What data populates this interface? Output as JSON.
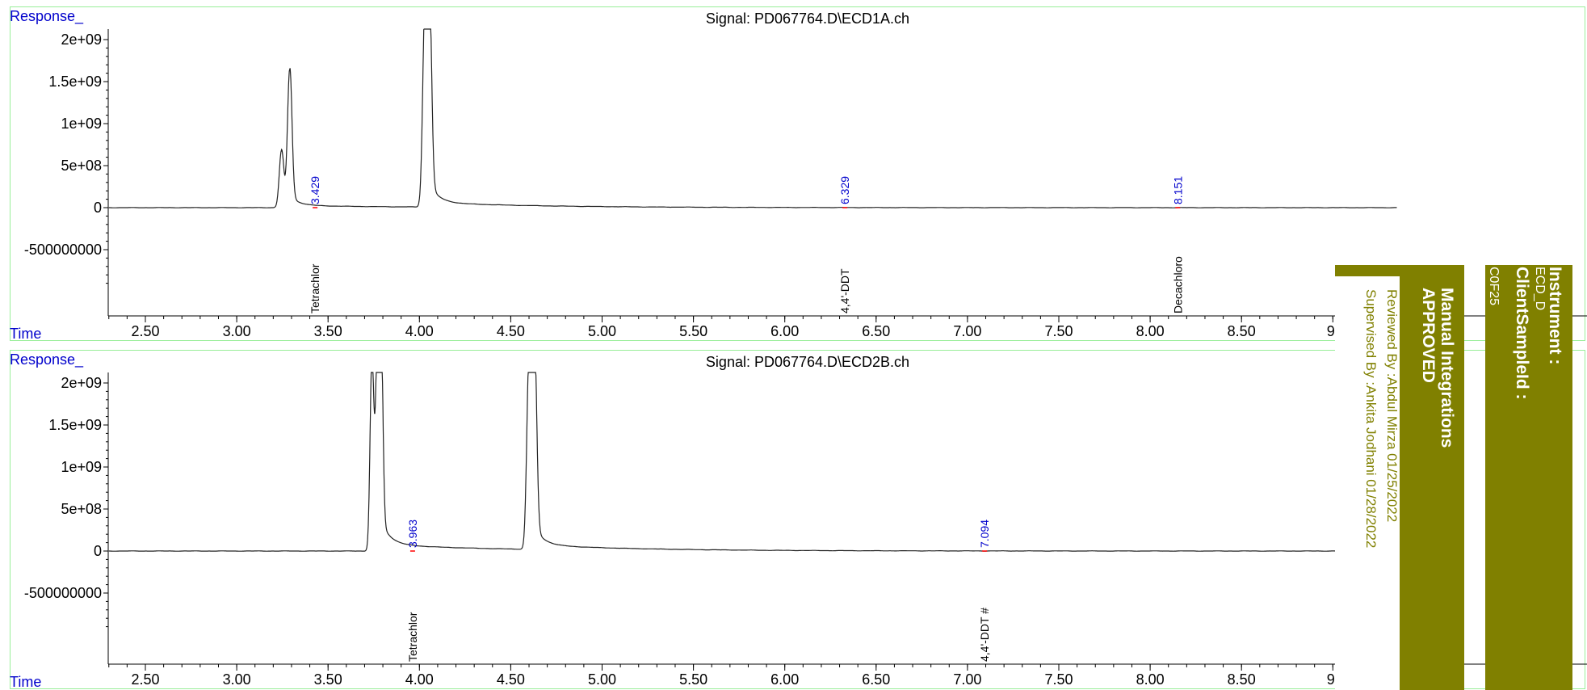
{
  "colors": {
    "panel_border": "#99ee99",
    "response_label": "#0000cc",
    "trace": "#222222",
    "rt_label": "#0000cc",
    "stamp": "#808000",
    "white": "#ffffff"
  },
  "chart_data": [
    {
      "type": "line",
      "title": "Signal: PD067764.D\\ECD1A.ch",
      "ylabel": "Response_",
      "xlabel": "Time",
      "xlim": [
        2.3,
        9.3
      ],
      "ylim": [
        -1250000000,
        2100000000
      ],
      "x_ticks": [
        "2.50",
        "3.00",
        "3.50",
        "4.00",
        "4.50",
        "5.00",
        "5.50",
        "6.00",
        "6.50",
        "7.00",
        "7.50",
        "8.00",
        "8.50",
        "9."
      ],
      "y_ticks": [
        "2e+09",
        "1.5e+09",
        "1e+09",
        "5e+08",
        "0",
        "-500000000"
      ],
      "peaks": [
        {
          "rt": 3.245,
          "height": 680000000,
          "width": 0.012
        },
        {
          "rt": 3.29,
          "height": 1620000000,
          "width": 0.012
        },
        {
          "rt": 4.03,
          "height": 2300000000,
          "width": 0.012
        },
        {
          "rt": 4.055,
          "height": 2300000000,
          "width": 0.012
        }
      ],
      "rt_labels": [
        {
          "rt": 3.429,
          "label": "3.429"
        },
        {
          "rt": 6.329,
          "label": "6.329"
        },
        {
          "rt": 8.151,
          "label": "8.151"
        }
      ],
      "compounds": [
        {
          "rt": 3.429,
          "name": "Tetrachlor"
        },
        {
          "rt": 6.329,
          "name": "4,4'-DDT"
        },
        {
          "rt": 8.151,
          "name": "Decachloro"
        }
      ]
    },
    {
      "type": "line",
      "title": "Signal: PD067764.D\\ECD2B.ch",
      "ylabel": "Response_",
      "xlabel": "Time",
      "xlim": [
        2.3,
        9.3
      ],
      "ylim": [
        -1250000000,
        2100000000
      ],
      "x_ticks": [
        "2.50",
        "3.00",
        "3.50",
        "4.00",
        "4.50",
        "5.00",
        "5.50",
        "6.00",
        "6.50",
        "7.00",
        "7.50",
        "8.00",
        "8.50",
        "9."
      ],
      "y_ticks": [
        "2e+09",
        "1.5e+09",
        "1e+09",
        "5e+08",
        "0",
        "-500000000"
      ],
      "peaks": [
        {
          "rt": 3.74,
          "height": 2300000000,
          "width": 0.01
        },
        {
          "rt": 3.77,
          "height": 2300000000,
          "width": 0.01
        },
        {
          "rt": 3.79,
          "height": 2300000000,
          "width": 0.01
        },
        {
          "rt": 4.6,
          "height": 2300000000,
          "width": 0.012
        },
        {
          "rt": 4.63,
          "height": 2300000000,
          "width": 0.012
        }
      ],
      "rt_labels": [
        {
          "rt": 3.963,
          "label": "3.963"
        },
        {
          "rt": 7.094,
          "label": "7.094"
        }
      ],
      "compounds": [
        {
          "rt": 3.963,
          "name": "Tetrachlor"
        },
        {
          "rt": 7.094,
          "name": "4,4'-DDT #"
        }
      ]
    }
  ],
  "stamp": {
    "instrument_label": "Instrument :",
    "instrument_value": "ECD_D",
    "client_label": "ClientSampleId :",
    "client_value": "C0F25",
    "manual_integrations": "Manual Integrations",
    "approved": "APPROVED",
    "reviewed": "Reviewed By :Abdul Mirza    01/25/2022",
    "supervised": "Supervised By :Ankita Jodhani    01/28/2022"
  }
}
